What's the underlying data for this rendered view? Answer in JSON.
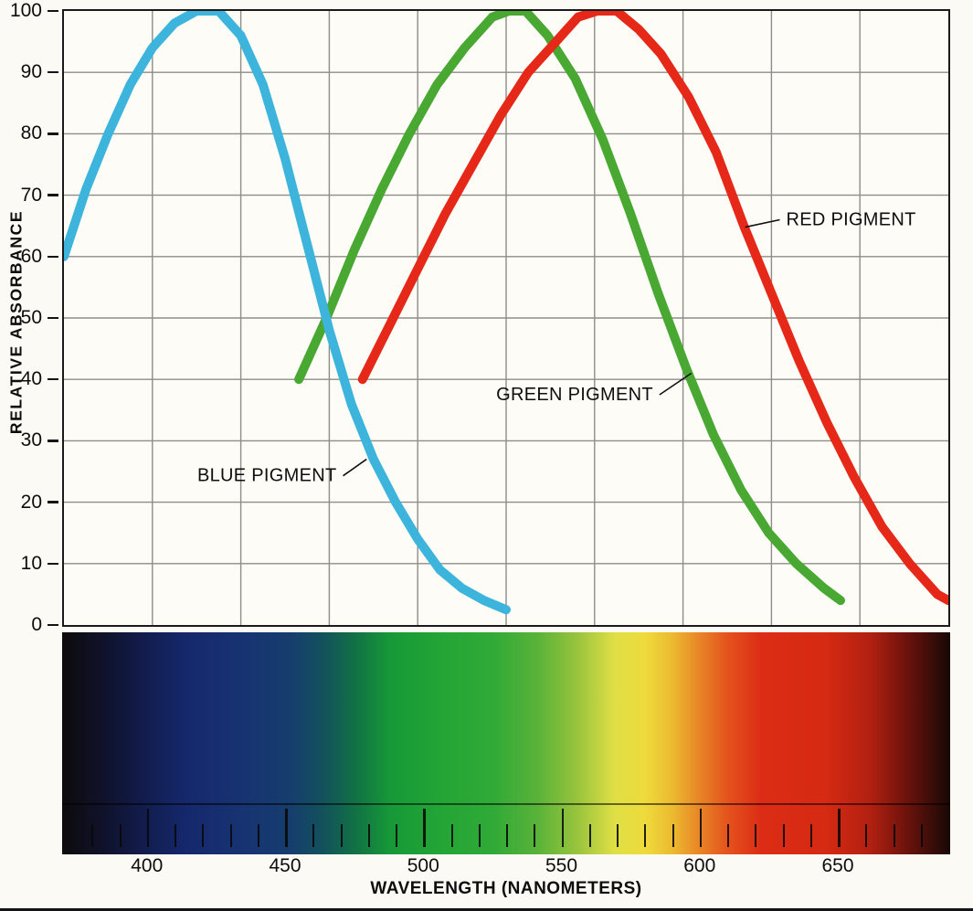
{
  "figure": {
    "background": "#fbfaf4",
    "paper_edge_color": "#141414"
  },
  "chart_data": {
    "type": "line",
    "title": "",
    "xlabel": "WAVELENGTH (NANOMETERS)",
    "ylabel": "RELATIVE ABSORBANCE",
    "xlim": [
      370,
      690
    ],
    "ylim": [
      0,
      100
    ],
    "x_ticks": [
      400,
      450,
      500,
      550,
      600,
      650
    ],
    "y_ticks": [
      0,
      10,
      20,
      30,
      40,
      50,
      60,
      70,
      80,
      90,
      100
    ],
    "grid": {
      "show": true,
      "color": "#8f8d87",
      "x_divisions": 10,
      "y_divisions": 10
    },
    "series": [
      {
        "name": "GREEN PIGMENT",
        "color": "#48a832",
        "points": [
          [
            455,
            40
          ],
          [
            465,
            50
          ],
          [
            475,
            61
          ],
          [
            485,
            71
          ],
          [
            495,
            80
          ],
          [
            505,
            88
          ],
          [
            515,
            94
          ],
          [
            525,
            99
          ],
          [
            531,
            100
          ],
          [
            537,
            100
          ],
          [
            545,
            96
          ],
          [
            555,
            89
          ],
          [
            565,
            79
          ],
          [
            575,
            67
          ],
          [
            585,
            54
          ],
          [
            595,
            42
          ],
          [
            605,
            31
          ],
          [
            615,
            22
          ],
          [
            625,
            15
          ],
          [
            635,
            10
          ],
          [
            645,
            6
          ],
          [
            651,
            4
          ]
        ]
      },
      {
        "name": "RED PIGMENT",
        "color": "#e52817",
        "points": [
          [
            478,
            40
          ],
          [
            488,
            49
          ],
          [
            498,
            58
          ],
          [
            508,
            67
          ],
          [
            518,
            75
          ],
          [
            528,
            83
          ],
          [
            538,
            90
          ],
          [
            548,
            95
          ],
          [
            556,
            99
          ],
          [
            563,
            100
          ],
          [
            570,
            100
          ],
          [
            578,
            97
          ],
          [
            586,
            93
          ],
          [
            596,
            86
          ],
          [
            606,
            77
          ],
          [
            616,
            65
          ],
          [
            626,
            54
          ],
          [
            636,
            43
          ],
          [
            646,
            33
          ],
          [
            656,
            24
          ],
          [
            666,
            16
          ],
          [
            676,
            10
          ],
          [
            686,
            5
          ],
          [
            690,
            4
          ]
        ]
      },
      {
        "name": "BLUE PIGMENT",
        "color": "#3cb4dc",
        "points": [
          [
            370,
            60
          ],
          [
            378,
            71
          ],
          [
            386,
            80
          ],
          [
            394,
            88
          ],
          [
            402,
            94
          ],
          [
            410,
            98
          ],
          [
            418,
            100
          ],
          [
            426,
            100
          ],
          [
            434,
            96
          ],
          [
            442,
            88
          ],
          [
            450,
            76
          ],
          [
            458,
            62
          ],
          [
            466,
            48
          ],
          [
            474,
            36
          ],
          [
            482,
            27
          ],
          [
            490,
            20
          ],
          [
            498,
            14
          ],
          [
            506,
            9
          ],
          [
            514,
            6
          ],
          [
            522,
            4
          ],
          [
            530,
            2.5
          ]
        ]
      }
    ],
    "annotations": [
      {
        "text": "RED PIGMENT",
        "nm": 629,
        "val": 66,
        "to_nm": 616.5,
        "to_val": 64.8,
        "anchor": "start"
      },
      {
        "text": "GREEN PIGMENT",
        "nm": 585.5,
        "val": 37.5,
        "to_nm": 597,
        "to_val": 41,
        "anchor": "end"
      },
      {
        "text": "BLUE PIGMENT",
        "nm": 471,
        "val": 24.3,
        "to_nm": 479.5,
        "to_val": 27,
        "anchor": "end"
      }
    ],
    "spectrum_band": {
      "tick_start": 380,
      "tick_end": 680,
      "minor_tick_step": 10,
      "major_ticks": [
        400,
        450,
        500,
        550,
        600,
        650
      ],
      "stops": [
        {
          "nm": 370,
          "color": "#0d0b0c"
        },
        {
          "nm": 385,
          "color": "#10122b"
        },
        {
          "nm": 400,
          "color": "#121d4e"
        },
        {
          "nm": 415,
          "color": "#15286c"
        },
        {
          "nm": 435,
          "color": "#173372"
        },
        {
          "nm": 452,
          "color": "#163d6e"
        },
        {
          "nm": 464,
          "color": "#13515c"
        },
        {
          "nm": 476,
          "color": "#127244"
        },
        {
          "nm": 488,
          "color": "#169838"
        },
        {
          "nm": 505,
          "color": "#22a436"
        },
        {
          "nm": 525,
          "color": "#30aa37"
        },
        {
          "nm": 541,
          "color": "#58b239"
        },
        {
          "nm": 556,
          "color": "#9ac43d"
        },
        {
          "nm": 569,
          "color": "#dfdf45"
        },
        {
          "nm": 580,
          "color": "#eedb3c"
        },
        {
          "nm": 590,
          "color": "#ecba30"
        },
        {
          "nm": 600,
          "color": "#e88326"
        },
        {
          "nm": 610,
          "color": "#e4521d"
        },
        {
          "nm": 622,
          "color": "#dc2c15"
        },
        {
          "nm": 645,
          "color": "#d62a12"
        },
        {
          "nm": 661,
          "color": "#b22011"
        },
        {
          "nm": 674,
          "color": "#6e130c"
        },
        {
          "nm": 690,
          "color": "#170806"
        }
      ]
    }
  }
}
